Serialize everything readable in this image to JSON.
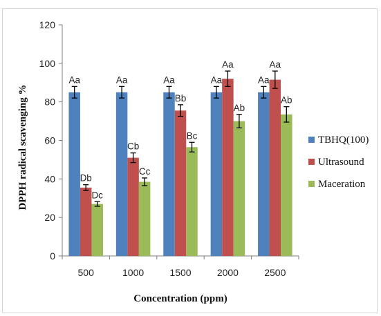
{
  "chart_data": {
    "type": "bar",
    "title": "",
    "xlabel": "Concentration (ppm)",
    "ylabel": "DPPH radical scavenging %",
    "ylim": [
      0,
      120
    ],
    "yticks": [
      0,
      20,
      40,
      60,
      80,
      100,
      120
    ],
    "categories": [
      "500",
      "1000",
      "1500",
      "2000",
      "2500"
    ],
    "grid": false,
    "legend_position": "right",
    "series": [
      {
        "name": "TBHQ(100)",
        "color": "#4F81BD",
        "values": [
          85,
          85,
          85,
          85,
          85
        ],
        "errors": [
          3,
          3,
          3,
          3,
          3
        ],
        "labels": [
          "Aa",
          "Aa",
          "Aa",
          "Aa",
          "Aa"
        ]
      },
      {
        "name": "Ultrasound",
        "color": "#C0504D",
        "values": [
          35.5,
          51,
          75.5,
          92,
          91.5
        ],
        "errors": [
          1.5,
          2.5,
          3,
          4,
          4.5
        ],
        "labels": [
          "Db",
          "Cb",
          "Bb",
          "Aa",
          "Aa"
        ]
      },
      {
        "name": "Maceration",
        "color": "#9BBB59",
        "values": [
          27,
          38.5,
          56.5,
          70,
          73.5
        ],
        "errors": [
          1.2,
          2,
          2.5,
          3.5,
          4
        ],
        "labels": [
          "Dc",
          "Cc",
          "Bc",
          "Ab",
          "Ab"
        ]
      }
    ]
  }
}
